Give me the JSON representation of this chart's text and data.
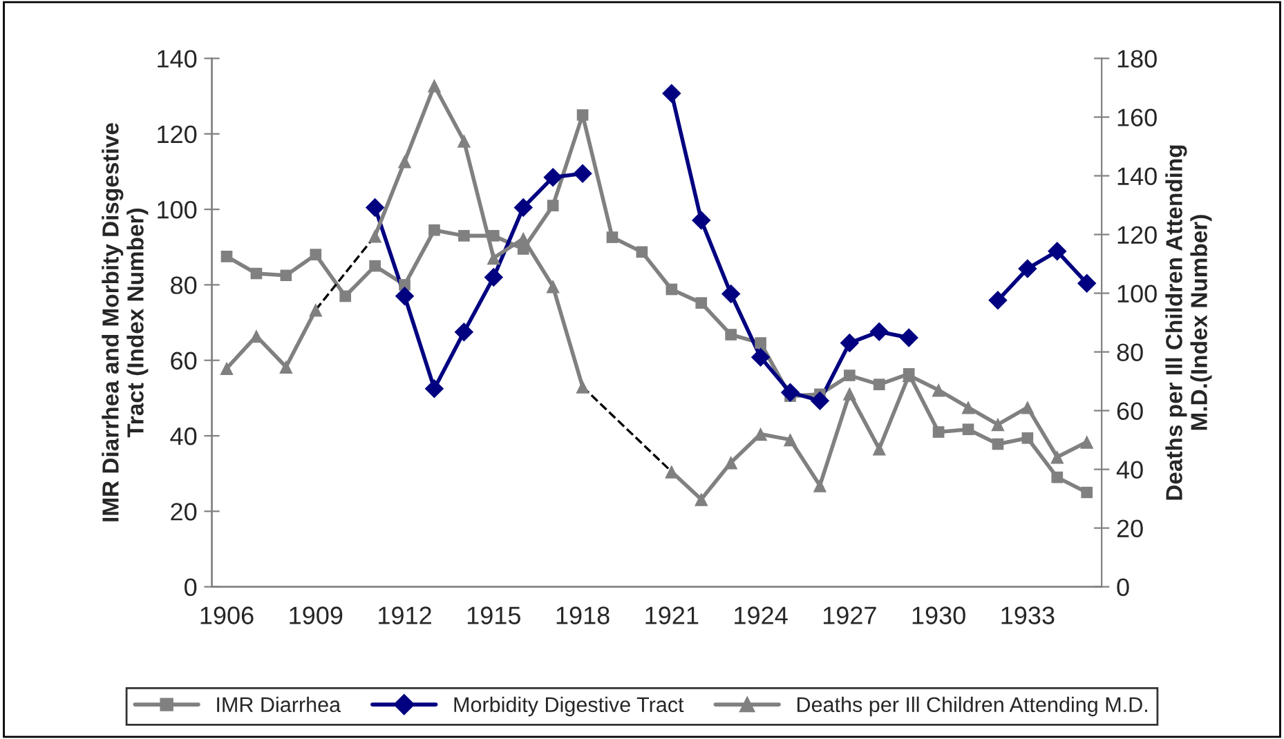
{
  "chart_data": {
    "type": "line",
    "ylabel": "IMR Diarrhea and Morbity Disgestive\nTract (Index Number)",
    "y2label": "Deaths per Ill Children Attending\nM.D.(Index Number)",
    "categories": [
      "1906",
      null,
      null,
      "1909",
      null,
      null,
      "1912",
      null,
      null,
      "1915",
      null,
      null,
      "1918",
      null,
      null,
      "1921",
      null,
      null,
      "1924",
      null,
      null,
      "1927",
      null,
      null,
      "1930",
      null,
      null,
      "1933",
      null,
      null
    ],
    "ylim": [
      0,
      140
    ],
    "yticks": [
      0,
      20,
      40,
      60,
      80,
      100,
      120,
      140
    ],
    "y2lim": [
      0,
      180
    ],
    "y2ticks": [
      0,
      20,
      40,
      60,
      80,
      100,
      120,
      140,
      160,
      180
    ],
    "grid": false,
    "legend": "bottom",
    "series": [
      {
        "name": "IMR Diarrhea",
        "color": "#808080",
        "marker": "square",
        "values": [
          87.5,
          83,
          82.5,
          88,
          77,
          85,
          80,
          94.5,
          93,
          93,
          89.5,
          101,
          125,
          92.6,
          88.7,
          78.8,
          75.2,
          66.8,
          64.6,
          50.5,
          51,
          56,
          53.6,
          56.4,
          41,
          41.7,
          37.8,
          39.4,
          29,
          25
        ]
      },
      {
        "name": "Morbidity Digestive Tract",
        "color": "#000080",
        "marker": "diamond",
        "values": [
          null,
          null,
          null,
          null,
          null,
          100.5,
          77,
          52.5,
          67.5,
          82,
          100.5,
          108.5,
          109.5,
          null,
          null,
          130.7,
          97.1,
          77.6,
          60.8,
          51.5,
          49.3,
          64.6,
          67.6,
          66,
          null,
          null,
          75.9,
          84.3,
          88.9,
          80.4
        ]
      },
      {
        "name": "Deaths per Ill Children Attending M.D.",
        "color": "#808080",
        "marker": "triangle",
        "axis": "y2",
        "values": [
          74.4,
          85.4,
          74.9,
          94.3,
          null,
          119.5,
          144.9,
          170.7,
          151.9,
          112,
          118.6,
          102.3,
          68.1,
          null,
          null,
          39.2,
          29.8,
          42.3,
          52,
          50.1,
          34.5,
          65.8,
          47,
          72,
          67,
          61.1,
          55.3,
          61.1,
          44.2,
          49.3
        ]
      },
      {
        "color": "#000000",
        "marker": "none",
        "line_style": "dashed",
        "axis": "y2",
        "values": [
          null,
          null,
          null,
          94.3,
          null,
          119.5,
          null,
          null,
          null,
          null,
          null,
          null,
          null,
          null,
          null,
          null,
          null,
          null,
          null,
          null,
          null,
          null,
          null,
          null,
          null,
          null,
          null,
          null,
          null,
          null
        ]
      },
      {
        "color": "#000000",
        "marker": "none",
        "line_style": "dashed",
        "axis": "y2",
        "values": [
          null,
          null,
          null,
          null,
          null,
          null,
          null,
          null,
          null,
          null,
          null,
          null,
          68.1,
          null,
          null,
          39.2,
          null,
          null,
          null,
          null,
          null,
          null,
          null,
          null,
          null,
          null,
          null,
          null,
          null,
          null
        ]
      }
    ]
  }
}
